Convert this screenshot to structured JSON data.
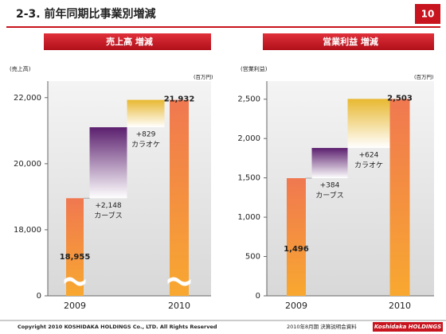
{
  "header": {
    "title": "2-3. 前年同期比事業別増減",
    "page_number": "10"
  },
  "footer": {
    "copyright": "Copyright 2010 KOSHIDAKA HOLDINGS Co., LTD. All Rights Reserved",
    "document": "2010年8月期 決算説明会資料",
    "logo": "Koshidaka HOLDINGS"
  },
  "chart_data": [
    {
      "type": "waterfall",
      "title": "売上高 増減",
      "y_axis_label": "(売上高)",
      "unit_label": "(百万円)",
      "categories": [
        "2009",
        "カーブス",
        "カラオケ",
        "2010"
      ],
      "measure": [
        "absolute",
        "relative",
        "relative",
        "total"
      ],
      "values": [
        18955,
        2148,
        829,
        21932
      ],
      "value_labels": [
        "18,955",
        "+2,148",
        "+829",
        "21,932"
      ],
      "colors": [
        "#f07850",
        "#5b1f6e",
        "#e8b830",
        "#f07850"
      ],
      "ylim": [
        0,
        22500
      ],
      "axis_break": 16000,
      "yticks": [
        0,
        {
          "value": 18000,
          "label": "18,000"
        },
        {
          "value": 20000,
          "label": "20,000"
        },
        {
          "value": 22000,
          "label": "22,000"
        }
      ]
    },
    {
      "type": "waterfall",
      "title": "営業利益 増減",
      "y_axis_label": "(営業利益)",
      "unit_label": "(百万円)",
      "categories": [
        "2009",
        "カーブス",
        "カラオケ",
        "2010"
      ],
      "measure": [
        "absolute",
        "relative",
        "relative",
        "total"
      ],
      "values": [
        1496,
        384,
        624,
        2503
      ],
      "value_labels": [
        "1,496",
        "+384",
        "+624",
        "2,503"
      ],
      "colors": [
        "#f07850",
        "#5b1f6e",
        "#e8b830",
        "#f07850"
      ],
      "ylim": [
        0,
        2730
      ],
      "yticks": [
        0,
        500,
        {
          "value": 1000,
          "label": "1,000"
        },
        {
          "value": 1500,
          "label": "1,500"
        },
        {
          "value": 2000,
          "label": "2,000"
        },
        {
          "value": 2500,
          "label": "2,500"
        }
      ]
    }
  ]
}
